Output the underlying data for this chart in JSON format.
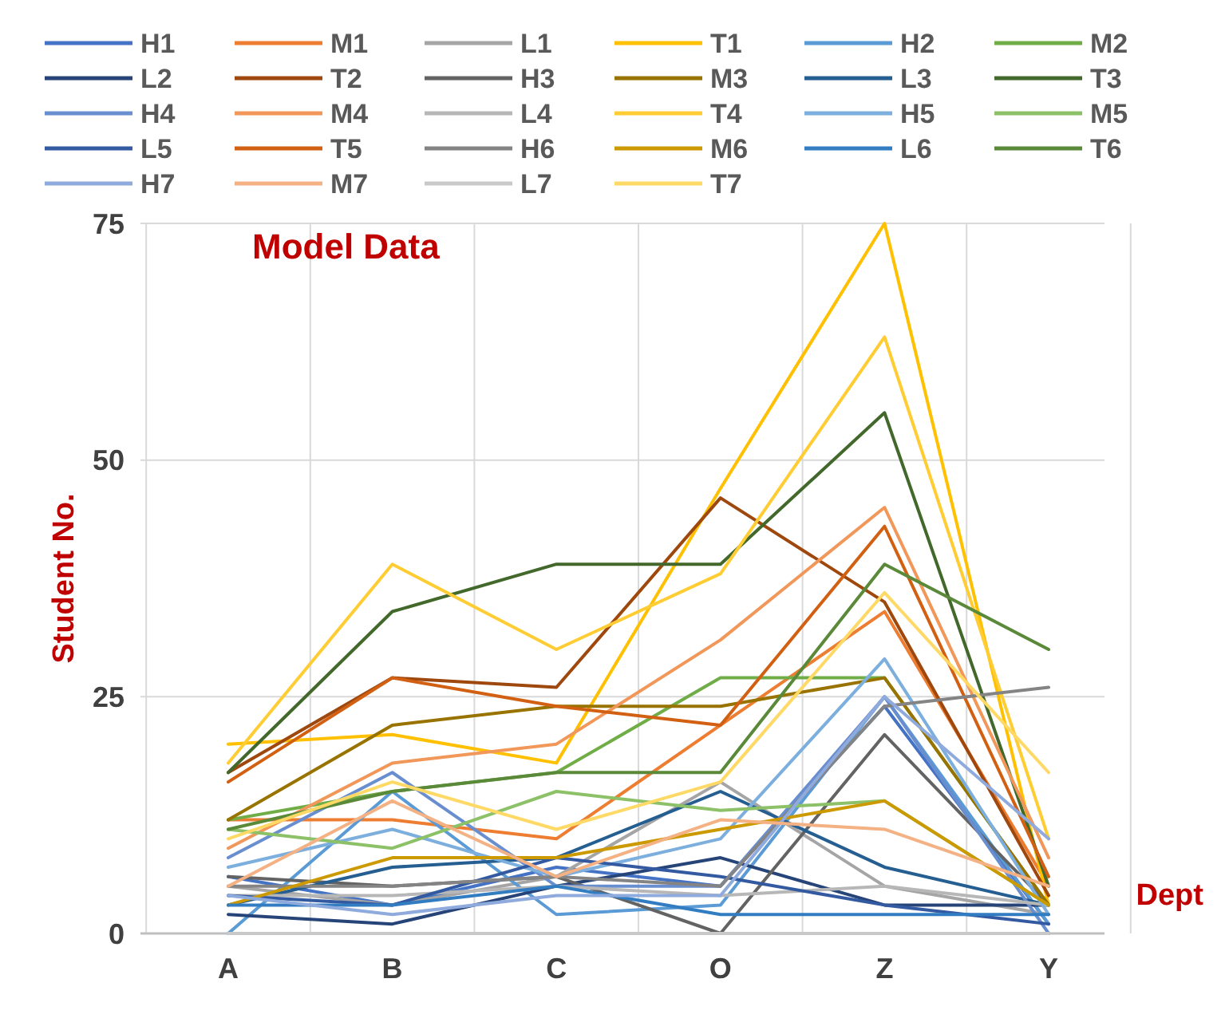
{
  "chart_data": {
    "type": "line",
    "annotations": [
      "Model Data"
    ],
    "xlabel": "Dept",
    "ylabel": "Student No.",
    "categories": [
      "A",
      "B",
      "C",
      "O",
      "Z",
      "Y"
    ],
    "ylim": [
      0,
      75
    ],
    "yticks": [
      0,
      25,
      50,
      75
    ],
    "grid": true,
    "legend": "top",
    "marker": "none",
    "line_style": "solid",
    "series": [
      {
        "name": "H1",
        "color": "#4472c4",
        "values": [
          6,
          3,
          7,
          5,
          24,
          1
        ]
      },
      {
        "name": "M1",
        "color": "#ed7d31",
        "values": [
          12,
          12,
          10,
          22,
          34,
          5
        ]
      },
      {
        "name": "L1",
        "color": "#a5a5a5",
        "values": [
          5,
          3,
          6,
          16,
          5,
          2
        ]
      },
      {
        "name": "T1",
        "color": "#ffc000",
        "values": [
          20,
          21,
          18,
          47,
          75,
          3
        ]
      },
      {
        "name": "H2",
        "color": "#5b9bd5",
        "values": [
          0,
          15,
          2,
          3,
          25,
          1
        ]
      },
      {
        "name": "M2",
        "color": "#70ad47",
        "values": [
          12,
          15,
          17,
          27,
          27,
          3
        ]
      },
      {
        "name": "L2",
        "color": "#264478",
        "values": [
          2,
          1,
          5,
          8,
          3,
          3
        ]
      },
      {
        "name": "T2",
        "color": "#9e480e",
        "values": [
          17,
          27,
          26,
          46,
          35,
          4
        ]
      },
      {
        "name": "H3",
        "color": "#636363",
        "values": [
          6,
          5,
          6,
          0,
          21,
          3
        ]
      },
      {
        "name": "M3",
        "color": "#997300",
        "values": [
          12,
          22,
          24,
          24,
          27,
          3
        ]
      },
      {
        "name": "L3",
        "color": "#255e91",
        "values": [
          3,
          7,
          8,
          15,
          7,
          3
        ]
      },
      {
        "name": "T3",
        "color": "#43682b",
        "values": [
          17,
          34,
          39,
          39,
          55,
          5
        ]
      },
      {
        "name": "H4",
        "color": "#698ed0",
        "values": [
          8,
          17,
          5,
          5,
          25,
          0
        ]
      },
      {
        "name": "M4",
        "color": "#f1975a",
        "values": [
          9,
          18,
          20,
          31,
          45,
          8
        ]
      },
      {
        "name": "L4",
        "color": "#b7b7b7",
        "values": [
          4,
          4,
          5,
          4,
          5,
          3
        ]
      },
      {
        "name": "T4",
        "color": "#ffcd33",
        "values": [
          18,
          39,
          30,
          38,
          63,
          10
        ]
      },
      {
        "name": "H5",
        "color": "#7cafdd",
        "values": [
          7,
          11,
          6,
          10,
          29,
          2
        ]
      },
      {
        "name": "M5",
        "color": "#8cc168",
        "values": [
          11,
          9,
          15,
          13,
          14,
          3
        ]
      },
      {
        "name": "L5",
        "color": "#335aa1",
        "values": [
          4,
          3,
          8,
          6,
          3,
          1
        ]
      },
      {
        "name": "T5",
        "color": "#d26012",
        "values": [
          16,
          27,
          24,
          22,
          43,
          6
        ]
      },
      {
        "name": "H6",
        "color": "#848484",
        "values": [
          5,
          5,
          6,
          5,
          24,
          26
        ]
      },
      {
        "name": "M6",
        "color": "#cc9a00",
        "values": [
          3,
          8,
          8,
          11,
          14,
          3
        ]
      },
      {
        "name": "L6",
        "color": "#327dc2",
        "values": [
          3,
          3,
          5,
          2,
          2,
          2
        ]
      },
      {
        "name": "T6",
        "color": "#5a8a39",
        "values": [
          11,
          15,
          17,
          17,
          39,
          30
        ]
      },
      {
        "name": "H7",
        "color": "#8faadc",
        "values": [
          4,
          2,
          4,
          4,
          25,
          10
        ]
      },
      {
        "name": "M7",
        "color": "#f4b183",
        "values": [
          5,
          14,
          6,
          12,
          11,
          5
        ]
      },
      {
        "name": "L7",
        "color": "#c9c9c9",
        "values": [
          0,
          0,
          0,
          0,
          0,
          0
        ]
      },
      {
        "name": "T7",
        "color": "#ffd966",
        "values": [
          10,
          16,
          11,
          16,
          36,
          17
        ]
      }
    ]
  }
}
